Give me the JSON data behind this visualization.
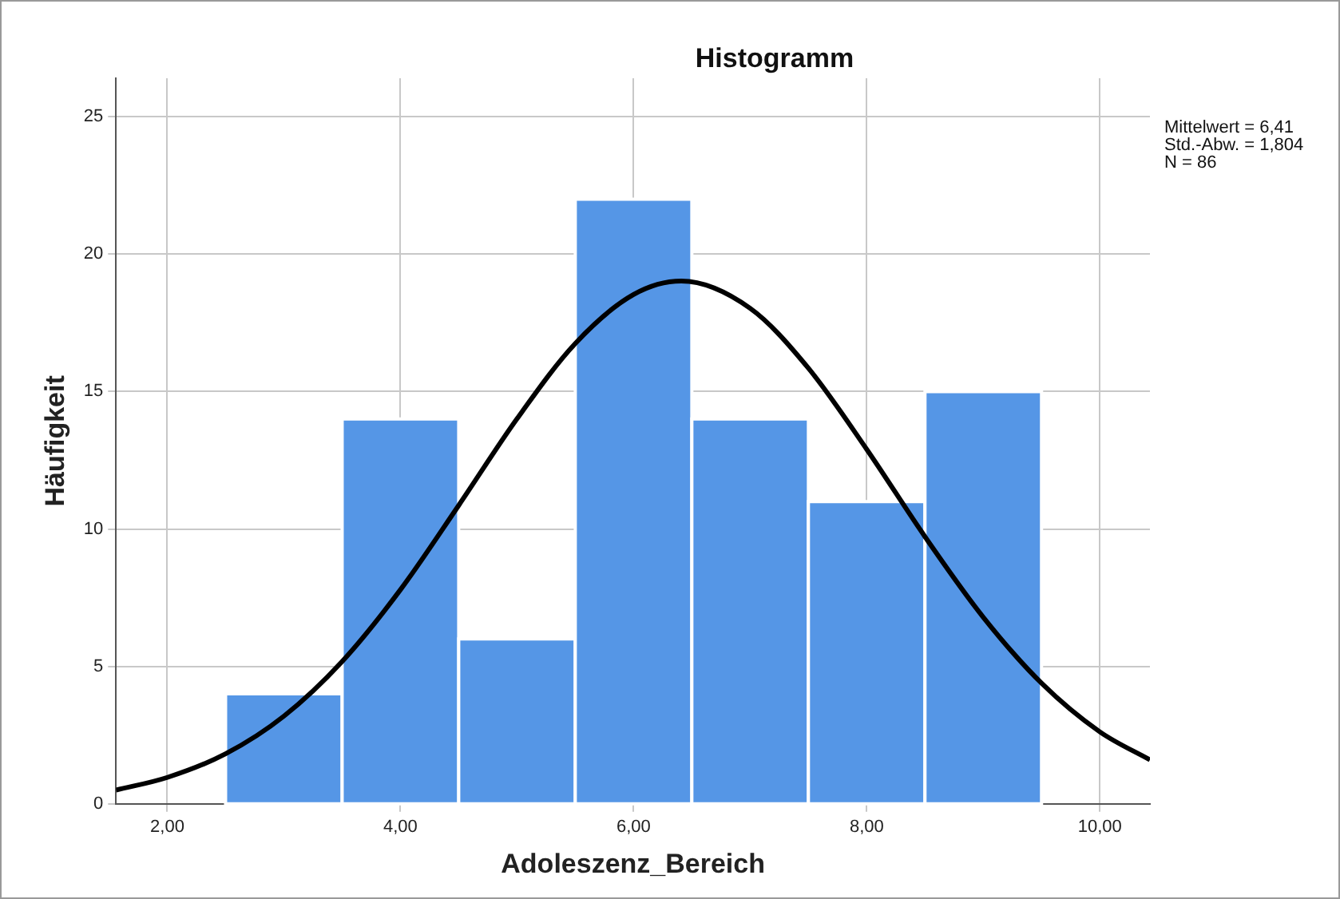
{
  "chart_data": {
    "type": "histogram",
    "title": "Histogramm",
    "xlabel": "Adoleszenz_Bereich",
    "ylabel": "Häufigkeit",
    "bins": [
      2.5,
      3.5,
      4.5,
      5.5,
      6.5,
      7.5,
      8.5,
      9.5
    ],
    "values": [
      4,
      14,
      6,
      22,
      14,
      11,
      15
    ],
    "color": "#5596e6",
    "series": [
      {
        "type": "line",
        "color": "#000000",
        "x": [
          1.56,
          2,
          2.5,
          3,
          3.5,
          4,
          4.5,
          5,
          5.5,
          6,
          6.41,
          7,
          7.5,
          8,
          8.5,
          9,
          9.5,
          10,
          10.43
        ],
        "values": [
          0.5,
          0.96,
          1.82,
          3.19,
          5.18,
          7.79,
          10.86,
          14.01,
          16.75,
          18.53,
          19.02,
          18.03,
          15.85,
          12.9,
          9.72,
          6.79,
          4.39,
          2.62,
          1.6
        ]
      }
    ],
    "xlim": [
      1.56,
      10.43
    ],
    "xticks": [
      {
        "value": 2,
        "label": "2,00"
      },
      {
        "value": 4,
        "label": "4,00"
      },
      {
        "value": 6,
        "label": "6,00"
      },
      {
        "value": 8,
        "label": "8,00"
      },
      {
        "value": 10,
        "label": "10,00"
      }
    ],
    "ylim": [
      0,
      26.4
    ],
    "yticks": [
      0,
      5,
      10,
      15,
      20,
      25
    ],
    "grid": true,
    "marker": "none",
    "annotations": [
      "Mittelwert = 6,41\nStd.-Abw. = 1,804\nN = 86"
    ]
  }
}
